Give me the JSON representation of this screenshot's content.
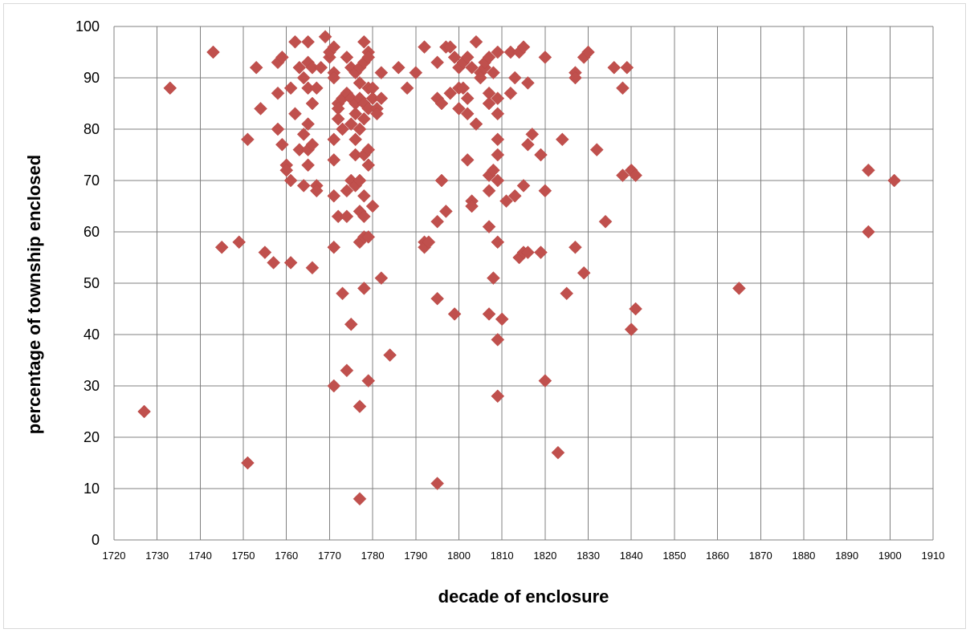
{
  "chart_data": {
    "type": "scatter",
    "title": "",
    "xlabel": "decade of enclosure",
    "ylabel": "percentage of township enclosed",
    "xlim": [
      1720,
      1910
    ],
    "ylim": [
      0,
      100
    ],
    "xticks": [
      1720,
      1730,
      1740,
      1750,
      1760,
      1770,
      1780,
      1790,
      1800,
      1810,
      1820,
      1830,
      1840,
      1850,
      1860,
      1870,
      1880,
      1890,
      1900,
      1910
    ],
    "yticks": [
      0,
      10,
      20,
      30,
      40,
      50,
      60,
      70,
      80,
      90,
      100
    ],
    "grid": true,
    "legend": "none",
    "marker": "diamond",
    "color": "#c0504d",
    "points": [
      [
        1727,
        25
      ],
      [
        1733,
        88
      ],
      [
        1743,
        95
      ],
      [
        1745,
        57
      ],
      [
        1749,
        58
      ],
      [
        1751,
        78
      ],
      [
        1751,
        15
      ],
      [
        1753,
        92
      ],
      [
        1754,
        84
      ],
      [
        1755,
        56
      ],
      [
        1757,
        54
      ],
      [
        1758,
        80
      ],
      [
        1758,
        87
      ],
      [
        1758,
        93
      ],
      [
        1759,
        94
      ],
      [
        1759,
        77
      ],
      [
        1760,
        73
      ],
      [
        1760,
        72
      ],
      [
        1761,
        88
      ],
      [
        1761,
        70
      ],
      [
        1761,
        54
      ],
      [
        1762,
        83
      ],
      [
        1762,
        97
      ],
      [
        1763,
        76
      ],
      [
        1763,
        92
      ],
      [
        1764,
        90
      ],
      [
        1764,
        69
      ],
      [
        1764,
        79
      ],
      [
        1765,
        97
      ],
      [
        1765,
        93
      ],
      [
        1765,
        88
      ],
      [
        1765,
        81
      ],
      [
        1765,
        76
      ],
      [
        1765,
        73
      ],
      [
        1766,
        92
      ],
      [
        1766,
        85
      ],
      [
        1766,
        77
      ],
      [
        1766,
        53
      ],
      [
        1767,
        88
      ],
      [
        1767,
        69
      ],
      [
        1767,
        68
      ],
      [
        1768,
        92
      ],
      [
        1769,
        98
      ],
      [
        1770,
        94
      ],
      [
        1770,
        95
      ],
      [
        1771,
        96
      ],
      [
        1771,
        91
      ],
      [
        1771,
        90
      ],
      [
        1771,
        78
      ],
      [
        1771,
        74
      ],
      [
        1771,
        67
      ],
      [
        1771,
        57
      ],
      [
        1771,
        30
      ],
      [
        1772,
        85
      ],
      [
        1772,
        84
      ],
      [
        1772,
        82
      ],
      [
        1772,
        63
      ],
      [
        1773,
        86
      ],
      [
        1773,
        80
      ],
      [
        1773,
        48
      ],
      [
        1774,
        94
      ],
      [
        1774,
        87
      ],
      [
        1774,
        68
      ],
      [
        1774,
        63
      ],
      [
        1774,
        33
      ],
      [
        1775,
        92
      ],
      [
        1775,
        86
      ],
      [
        1775,
        81
      ],
      [
        1775,
        70
      ],
      [
        1775,
        42
      ],
      [
        1776,
        91
      ],
      [
        1776,
        85
      ],
      [
        1776,
        83
      ],
      [
        1776,
        78
      ],
      [
        1776,
        75
      ],
      [
        1776,
        69
      ],
      [
        1777,
        92
      ],
      [
        1777,
        89
      ],
      [
        1777,
        86
      ],
      [
        1777,
        80
      ],
      [
        1777,
        70
      ],
      [
        1777,
        64
      ],
      [
        1777,
        58
      ],
      [
        1777,
        26
      ],
      [
        1777,
        8
      ],
      [
        1778,
        97
      ],
      [
        1778,
        93
      ],
      [
        1778,
        85
      ],
      [
        1778,
        82
      ],
      [
        1778,
        75
      ],
      [
        1778,
        67
      ],
      [
        1778,
        63
      ],
      [
        1778,
        59
      ],
      [
        1778,
        49
      ],
      [
        1779,
        95
      ],
      [
        1779,
        94
      ],
      [
        1779,
        88
      ],
      [
        1779,
        84
      ],
      [
        1779,
        76
      ],
      [
        1779,
        73
      ],
      [
        1779,
        59
      ],
      [
        1779,
        31
      ],
      [
        1780,
        88
      ],
      [
        1780,
        86
      ],
      [
        1780,
        65
      ],
      [
        1781,
        84
      ],
      [
        1781,
        83
      ],
      [
        1782,
        91
      ],
      [
        1782,
        86
      ],
      [
        1782,
        51
      ],
      [
        1784,
        36
      ],
      [
        1786,
        92
      ],
      [
        1788,
        88
      ],
      [
        1790,
        91
      ],
      [
        1792,
        96
      ],
      [
        1792,
        58
      ],
      [
        1792,
        57
      ],
      [
        1793,
        58
      ],
      [
        1795,
        93
      ],
      [
        1795,
        86
      ],
      [
        1795,
        62
      ],
      [
        1795,
        47
      ],
      [
        1795,
        11
      ],
      [
        1796,
        85
      ],
      [
        1796,
        70
      ],
      [
        1797,
        96
      ],
      [
        1797,
        64
      ],
      [
        1798,
        96
      ],
      [
        1798,
        87
      ],
      [
        1799,
        94
      ],
      [
        1799,
        44
      ],
      [
        1800,
        92
      ],
      [
        1800,
        88
      ],
      [
        1800,
        84
      ],
      [
        1801,
        93
      ],
      [
        1801,
        88
      ],
      [
        1802,
        94
      ],
      [
        1802,
        86
      ],
      [
        1802,
        74
      ],
      [
        1802,
        83
      ],
      [
        1803,
        92
      ],
      [
        1803,
        66
      ],
      [
        1803,
        65
      ],
      [
        1804,
        97
      ],
      [
        1804,
        81
      ],
      [
        1805,
        91
      ],
      [
        1805,
        90
      ],
      [
        1806,
        92
      ],
      [
        1806,
        93
      ],
      [
        1807,
        94
      ],
      [
        1807,
        87
      ],
      [
        1807,
        85
      ],
      [
        1807,
        71
      ],
      [
        1807,
        68
      ],
      [
        1807,
        61
      ],
      [
        1807,
        44
      ],
      [
        1808,
        91
      ],
      [
        1808,
        72
      ],
      [
        1808,
        51
      ],
      [
        1809,
        95
      ],
      [
        1809,
        86
      ],
      [
        1809,
        83
      ],
      [
        1809,
        78
      ],
      [
        1809,
        75
      ],
      [
        1809,
        70
      ],
      [
        1809,
        58
      ],
      [
        1809,
        39
      ],
      [
        1809,
        28
      ],
      [
        1810,
        43
      ],
      [
        1811,
        66
      ],
      [
        1812,
        95
      ],
      [
        1812,
        87
      ],
      [
        1813,
        90
      ],
      [
        1813,
        67
      ],
      [
        1814,
        95
      ],
      [
        1814,
        55
      ],
      [
        1815,
        96
      ],
      [
        1815,
        69
      ],
      [
        1815,
        56
      ],
      [
        1816,
        89
      ],
      [
        1816,
        77
      ],
      [
        1816,
        56
      ],
      [
        1817,
        79
      ],
      [
        1819,
        75
      ],
      [
        1819,
        56
      ],
      [
        1820,
        94
      ],
      [
        1820,
        68
      ],
      [
        1820,
        31
      ],
      [
        1823,
        17
      ],
      [
        1824,
        78
      ],
      [
        1825,
        48
      ],
      [
        1827,
        91
      ],
      [
        1827,
        90
      ],
      [
        1827,
        57
      ],
      [
        1829,
        94
      ],
      [
        1829,
        52
      ],
      [
        1830,
        95
      ],
      [
        1832,
        76
      ],
      [
        1834,
        62
      ],
      [
        1836,
        92
      ],
      [
        1838,
        88
      ],
      [
        1838,
        71
      ],
      [
        1839,
        92
      ],
      [
        1840,
        72
      ],
      [
        1840,
        41
      ],
      [
        1841,
        71
      ],
      [
        1841,
        45
      ],
      [
        1865,
        49
      ],
      [
        1895,
        72
      ],
      [
        1895,
        60
      ],
      [
        1901,
        70
      ]
    ]
  }
}
